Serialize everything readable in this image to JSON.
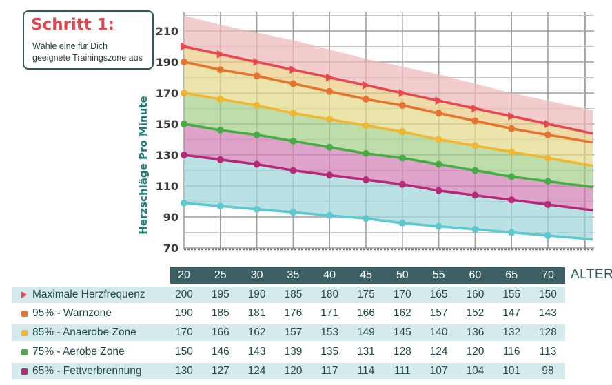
{
  "header": {
    "title": "Schritt 1:",
    "subtitle_line1": "Wähle eine für Dich",
    "subtitle_line2": "geeignete Trainingszone aus"
  },
  "chart_data": {
    "type": "line",
    "x": [
      20,
      25,
      30,
      35,
      40,
      45,
      50,
      55,
      60,
      65,
      70
    ],
    "xlabel": "ALTER",
    "ylabel": "Herzschläge Pro Minute",
    "ylim": [
      70,
      220
    ],
    "yticks": [
      70,
      90,
      110,
      130,
      150,
      170,
      190,
      210
    ],
    "grid": true,
    "series": [
      {
        "name": "Maximale Herzfrequenz",
        "color": "#e8474f",
        "marker": "triangle",
        "values": [
          200,
          195,
          190,
          185,
          180,
          175,
          170,
          165,
          160,
          155,
          150
        ]
      },
      {
        "name": "95% - Warnzone",
        "color": "#e8732f",
        "marker": "circle",
        "values": [
          190,
          185,
          181,
          176,
          171,
          166,
          162,
          157,
          152,
          147,
          143
        ]
      },
      {
        "name": "85% - Anaerobe Zone",
        "color": "#efb631",
        "marker": "circle",
        "values": [
          170,
          166,
          162,
          157,
          153,
          149,
          145,
          140,
          136,
          132,
          128
        ]
      },
      {
        "name": "75% - Aerobe Zone",
        "color": "#47ac45",
        "marker": "circle",
        "values": [
          150,
          146,
          143,
          139,
          135,
          131,
          128,
          124,
          120,
          116,
          113
        ]
      },
      {
        "name": "65% - Fettverbrennung",
        "color": "#b52a78",
        "marker": "circle",
        "values": [
          130,
          127,
          124,
          120,
          117,
          114,
          111,
          107,
          104,
          101,
          98
        ]
      },
      {
        "name": "",
        "color": "#5cc8d0",
        "marker": "circle",
        "values": [
          99,
          97,
          95,
          93,
          91,
          89,
          86,
          84,
          82,
          80,
          78
        ]
      }
    ],
    "band_top": {
      "color": "#efb8ba",
      "values": [
        220,
        214,
        209,
        204,
        198,
        192,
        187,
        182,
        176,
        170,
        165
      ]
    },
    "bands": [
      {
        "color": "#e9a488"
      },
      {
        "color": "#eccd86"
      },
      {
        "color": "#e3d98a"
      },
      {
        "color": "#a3d089"
      },
      {
        "color": "#d37fb8"
      },
      {
        "color": "#9fd7db"
      }
    ]
  },
  "table": {
    "ages": [
      "20",
      "25",
      "30",
      "35",
      "40",
      "45",
      "50",
      "55",
      "60",
      "65",
      "70"
    ],
    "rows": [
      {
        "label": "Maximale Herzfrequenz",
        "marker": "triangle",
        "color": "#e8474f",
        "values": [
          "200",
          "195",
          "190",
          "185",
          "180",
          "175",
          "170",
          "165",
          "160",
          "155",
          "150"
        ]
      },
      {
        "label": "95% - Warnzone",
        "marker": "square",
        "color": "#e8732f",
        "values": [
          "190",
          "185",
          "181",
          "176",
          "171",
          "166",
          "162",
          "157",
          "152",
          "147",
          "143"
        ]
      },
      {
        "label": "85% - Anaerobe Zone",
        "marker": "square",
        "color": "#efb631",
        "values": [
          "170",
          "166",
          "162",
          "157",
          "153",
          "149",
          "145",
          "140",
          "136",
          "132",
          "128"
        ]
      },
      {
        "label": "75% - Aerobe Zone",
        "marker": "square",
        "color": "#47ac45",
        "values": [
          "150",
          "146",
          "143",
          "139",
          "135",
          "131",
          "128",
          "124",
          "120",
          "116",
          "113"
        ]
      },
      {
        "label": "65% - Fettverbrennung",
        "marker": "square",
        "color": "#b52a78",
        "values": [
          "130",
          "127",
          "124",
          "120",
          "117",
          "114",
          "111",
          "107",
          "104",
          "101",
          "98"
        ]
      }
    ]
  }
}
